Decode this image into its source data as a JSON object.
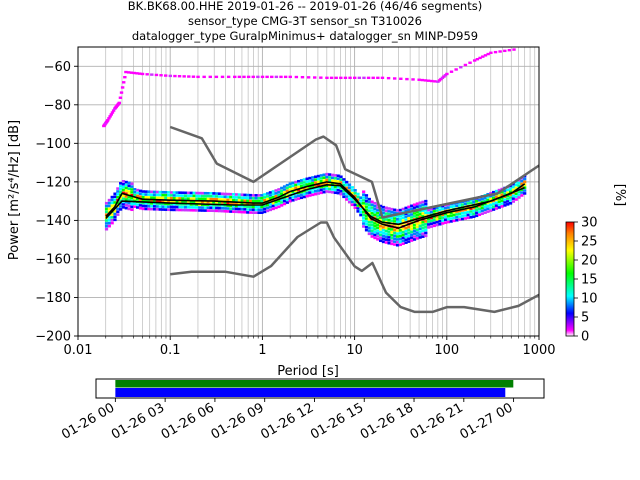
{
  "title": {
    "line1": "BK.BK68.00.HHE   2019-01-26 -- 2019-01-26  (46/46 segments)",
    "line2": "sensor_type CMG-3T sensor_sn T310026",
    "line3": "datalogger_type GuralpMinimus+ datalogger_sn MINP-D959"
  },
  "chart_data": [
    {
      "type": "heatmap",
      "title": "",
      "xlabel": "Period [s]",
      "ylabel": "Power [m²/s⁴/Hz] [dB]",
      "x_scale": "log",
      "xlim": [
        0.01,
        1000
      ],
      "ylim": [
        -200,
        -50
      ],
      "x_ticks": [
        {
          "value": 0.01,
          "label": "0.01"
        },
        {
          "value": 0.1,
          "label": "0.1"
        },
        {
          "value": 1,
          "label": "1"
        },
        {
          "value": 10,
          "label": "10"
        },
        {
          "value": 100,
          "label": "100"
        },
        {
          "value": 1000,
          "label": "1000"
        }
      ],
      "y_ticks": [
        -200,
        -180,
        -160,
        -140,
        -120,
        -100,
        -80,
        -60
      ],
      "grid": true,
      "colorbar": {
        "label": "[%]",
        "min": 0,
        "max": 30,
        "ticks": [
          0,
          5,
          10,
          15,
          20,
          25,
          30
        ]
      },
      "series": [
        {
          "name": "",
          "kind": "noise-model-high",
          "color": "#666666",
          "points": [
            [
              0.1,
              -91.5
            ],
            [
              0.22,
              -97.4
            ],
            [
              0.32,
              -110.5
            ],
            [
              0.8,
              -120
            ],
            [
              3.8,
              -98
            ],
            [
              4.6,
              -96.5
            ],
            [
              6.3,
              -101
            ],
            [
              7.9,
              -113.5
            ],
            [
              15.4,
              -120
            ],
            [
              20,
              -138.5
            ],
            [
              354.8,
              -126
            ],
            [
              1000,
              -111.5
            ]
          ]
        },
        {
          "name": "",
          "kind": "noise-model-low",
          "color": "#666666",
          "points": [
            [
              0.1,
              -168
            ],
            [
              0.17,
              -166.7
            ],
            [
              0.4,
              -166.7
            ],
            [
              0.8,
              -169.2
            ],
            [
              1.24,
              -163.7
            ],
            [
              2.4,
              -148.6
            ],
            [
              4.3,
              -141.1
            ],
            [
              5.0,
              -141.1
            ],
            [
              6.0,
              -149
            ],
            [
              10,
              -163.8
            ],
            [
              12,
              -166.2
            ],
            [
              15.6,
              -162.1
            ],
            [
              21.9,
              -177.5
            ],
            [
              31.6,
              -185
            ],
            [
              45,
              -187.5
            ],
            [
              70,
              -187.5
            ],
            [
              101,
              -185
            ],
            [
              154,
              -185
            ],
            [
              328,
              -187.5
            ],
            [
              600,
              -184.4
            ],
            [
              1000,
              -178.6
            ]
          ]
        },
        {
          "name": "",
          "kind": "mode",
          "color": "#000000",
          "points": [
            [
              0.02,
              -138
            ],
            [
              0.025,
              -133
            ],
            [
              0.03,
              -126
            ],
            [
              0.05,
              -129
            ],
            [
              0.1,
              -129.5
            ],
            [
              0.3,
              -130
            ],
            [
              0.5,
              -130.5
            ],
            [
              0.8,
              -131
            ],
            [
              1,
              -131
            ],
            [
              1.5,
              -128
            ],
            [
              2,
              -125
            ],
            [
              3,
              -122.5
            ],
            [
              5,
              -120
            ],
            [
              7,
              -121
            ],
            [
              10,
              -128
            ],
            [
              15,
              -139
            ],
            [
              20,
              -142
            ],
            [
              30,
              -144
            ],
            [
              50,
              -140
            ],
            [
              100,
              -136
            ],
            [
              200,
              -133
            ],
            [
              500,
              -126
            ],
            [
              700,
              -121
            ]
          ]
        },
        {
          "name": "",
          "kind": "mean",
          "color": "#000000",
          "points": [
            [
              0.02,
              -139
            ],
            [
              0.03,
              -130
            ],
            [
              0.1,
              -131
            ],
            [
              0.5,
              -132
            ],
            [
              1,
              -132
            ],
            [
              2,
              -127
            ],
            [
              3,
              -124
            ],
            [
              5,
              -121.5
            ],
            [
              7,
              -122
            ],
            [
              10,
              -129
            ],
            [
              15,
              -138
            ],
            [
              20,
              -141
            ],
            [
              30,
              -142
            ],
            [
              50,
              -139
            ],
            [
              100,
              -135
            ],
            [
              300,
              -130
            ],
            [
              700,
              -123
            ]
          ]
        }
      ]
    },
    {
      "type": "bar",
      "title": "",
      "xlabel": "",
      "ylabel": "",
      "xlim": [
        "2019-01-25 22:50",
        "2019-01-27 01:50"
      ],
      "x_ticks": [
        "01-26 00",
        "01-26 03",
        "01-26 06",
        "01-26 09",
        "01-26 12",
        "01-26 15",
        "01-26 18",
        "01-26 21",
        "01-27 00"
      ],
      "series": [
        {
          "name": "",
          "kind": "data-coverage",
          "color": "#008000",
          "start": "2019-01-26 00:00",
          "end": "2019-01-26 23:59"
        },
        {
          "name": "",
          "kind": "psd-segments",
          "color": "#0000ff",
          "start": "2019-01-26 00:00",
          "end": "2019-01-26 23:30"
        }
      ]
    }
  ]
}
